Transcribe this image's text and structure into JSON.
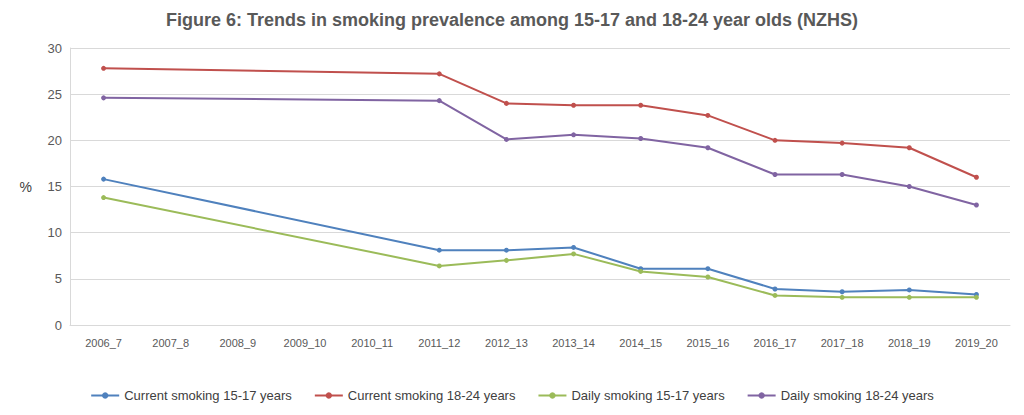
{
  "chart_data": {
    "type": "line",
    "title": "Figure 6: Trends in smoking prevalence among 15-17 and 18-24 year olds (NZHS)",
    "y_label": "%",
    "categories": [
      "2006_7",
      "2007_8",
      "2008_9",
      "2009_10",
      "2010_11",
      "2011_12",
      "2012_13",
      "2013_14",
      "2014_15",
      "2015_16",
      "2016_17",
      "2017_18",
      "2018_19",
      "2019_20"
    ],
    "series": [
      {
        "name": "Current smoking 15-17 years",
        "color": "#4f81bd",
        "values": [
          15.8,
          null,
          null,
          null,
          null,
          8.1,
          8.1,
          8.4,
          6.1,
          6.1,
          3.9,
          3.6,
          3.8,
          3.3
        ]
      },
      {
        "name": "Current smoking 18-24 years",
        "color": "#c0504d",
        "values": [
          27.8,
          null,
          null,
          null,
          null,
          27.2,
          24.0,
          23.8,
          23.8,
          22.7,
          20.0,
          19.7,
          19.2,
          16.0
        ]
      },
      {
        "name": "Daily smoking 15-17 years",
        "color": "#9bbb59",
        "values": [
          13.8,
          null,
          null,
          null,
          null,
          6.4,
          7.0,
          7.7,
          5.8,
          5.2,
          3.2,
          3.0,
          3.0,
          3.0
        ]
      },
      {
        "name": "Daily smoking 18-24 years",
        "color": "#8064a2",
        "values": [
          24.6,
          null,
          null,
          null,
          null,
          24.3,
          20.1,
          20.6,
          20.2,
          19.2,
          16.3,
          16.3,
          15.0,
          13.0
        ]
      }
    ],
    "ylim": [
      0,
      30
    ],
    "yticks": [
      0,
      5,
      10,
      15,
      20,
      25,
      30
    ],
    "grid": true,
    "legend": "bottom",
    "marker": "circle",
    "line_style": "solid"
  }
}
